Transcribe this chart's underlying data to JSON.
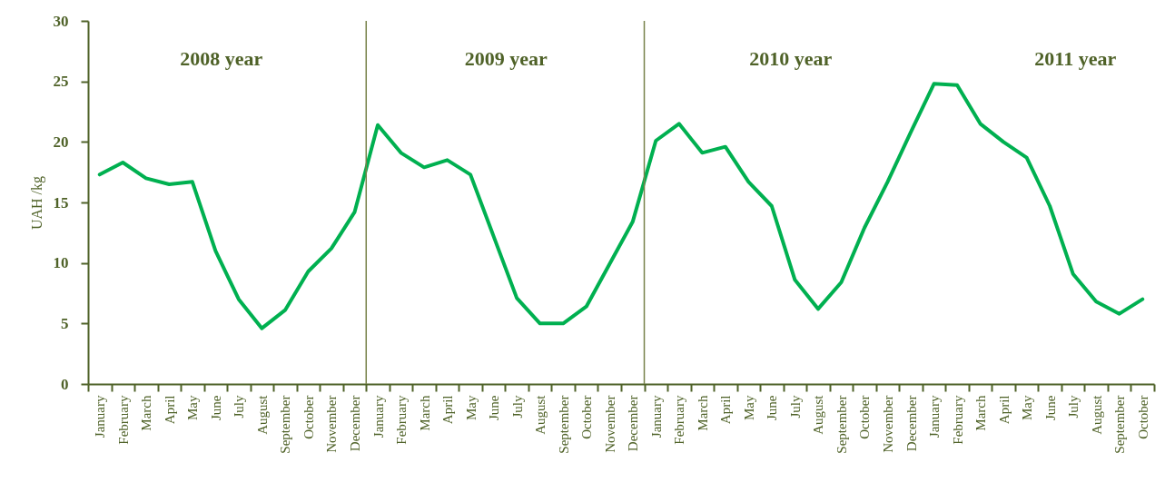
{
  "chart_data": {
    "type": "line",
    "ylabel": "UAH /kg",
    "categories": [
      "January",
      "February",
      "March",
      "April",
      "May",
      "June",
      "July",
      "August",
      "September",
      "October",
      "November",
      "December",
      "January",
      "February",
      "March",
      "April",
      "May",
      "June",
      "July",
      "August",
      "September",
      "October",
      "November",
      "December",
      "January",
      "February",
      "March",
      "April",
      "May",
      "June",
      "July",
      "August",
      "September",
      "October",
      "November",
      "December",
      "January",
      "February",
      "March",
      "April",
      "May",
      "June",
      "July",
      "August",
      "September",
      "October"
    ],
    "series": [
      {
        "color": "#00b050",
        "values": [
          17.3,
          18.3,
          17.0,
          16.5,
          16.7,
          11.0,
          7.0,
          4.6,
          6.1,
          9.3,
          11.2,
          14.2,
          21.4,
          19.1,
          17.9,
          18.5,
          17.3,
          12.2,
          7.1,
          5.0,
          5.0,
          6.4,
          9.9,
          13.4,
          20.1,
          21.5,
          19.1,
          19.6,
          16.7,
          14.7,
          8.6,
          6.2,
          8.4,
          12.9,
          16.7,
          20.8,
          24.8,
          24.7,
          21.5,
          20.0,
          18.7,
          14.7,
          9.1,
          6.8,
          5.8,
          7.0
        ]
      }
    ],
    "ylim": [
      0,
      30
    ],
    "yticks": [
      0,
      5,
      10,
      15,
      20,
      25,
      30
    ],
    "grid": false,
    "marker": "none",
    "line_style": "solid",
    "annotations": [
      "2008 year",
      "2009 year",
      "2010 year",
      "2011 year"
    ]
  }
}
